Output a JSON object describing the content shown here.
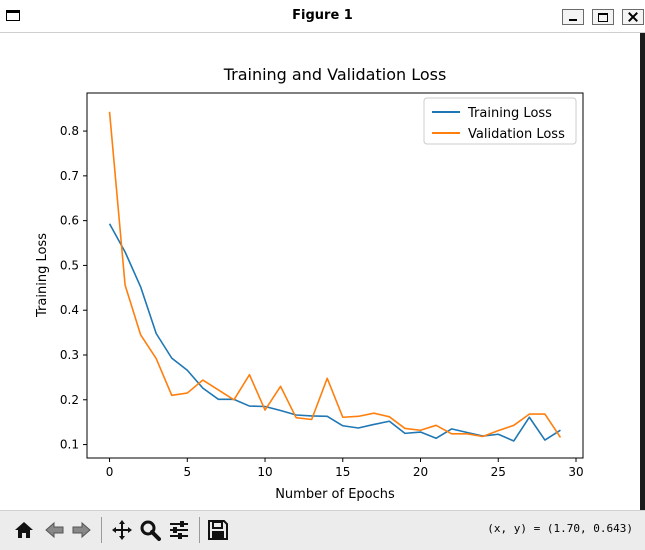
{
  "window": {
    "title": "Figure 1"
  },
  "toolbar": {
    "buttons": [
      "home-icon",
      "back-icon",
      "forward-icon",
      "pan-icon",
      "zoom-icon",
      "configure-subplots-icon",
      "save-icon"
    ],
    "coords": "(x, y) = (1.70, 0.643)"
  },
  "chart_data": {
    "type": "line",
    "title": "Training and Validation Loss",
    "xlabel": "Number of Epochs",
    "ylabel": "Training Loss",
    "xlim": [
      -1.45,
      30.45
    ],
    "ylim": [
      0.07,
      0.885
    ],
    "xticks": [
      0,
      5,
      10,
      15,
      20,
      25,
      30
    ],
    "yticks": [
      0.1,
      0.2,
      0.3,
      0.4,
      0.5,
      0.6,
      0.7,
      0.8
    ],
    "legend": "top-right",
    "x": [
      0,
      1,
      2,
      3,
      4,
      5,
      6,
      7,
      8,
      9,
      10,
      11,
      12,
      13,
      14,
      15,
      16,
      17,
      18,
      19,
      20,
      21,
      22,
      23,
      24,
      25,
      26,
      27,
      28,
      29
    ],
    "series": [
      {
        "name": "Training Loss",
        "color": "#1f77b4",
        "values": [
          0.593,
          0.53,
          0.452,
          0.348,
          0.293,
          0.266,
          0.226,
          0.201,
          0.201,
          0.186,
          0.185,
          0.176,
          0.166,
          0.164,
          0.163,
          0.142,
          0.137,
          0.145,
          0.152,
          0.125,
          0.128,
          0.114,
          0.135,
          0.127,
          0.119,
          0.123,
          0.108,
          0.161,
          0.11,
          0.132
        ]
      },
      {
        "name": "Validation Loss",
        "color": "#ff7f0e",
        "values": [
          0.843,
          0.456,
          0.345,
          0.292,
          0.21,
          0.215,
          0.244,
          0.222,
          0.2,
          0.256,
          0.177,
          0.23,
          0.16,
          0.156,
          0.248,
          0.161,
          0.163,
          0.17,
          0.162,
          0.136,
          0.132,
          0.143,
          0.124,
          0.124,
          0.118,
          0.131,
          0.143,
          0.168,
          0.168,
          0.116
        ]
      }
    ]
  }
}
